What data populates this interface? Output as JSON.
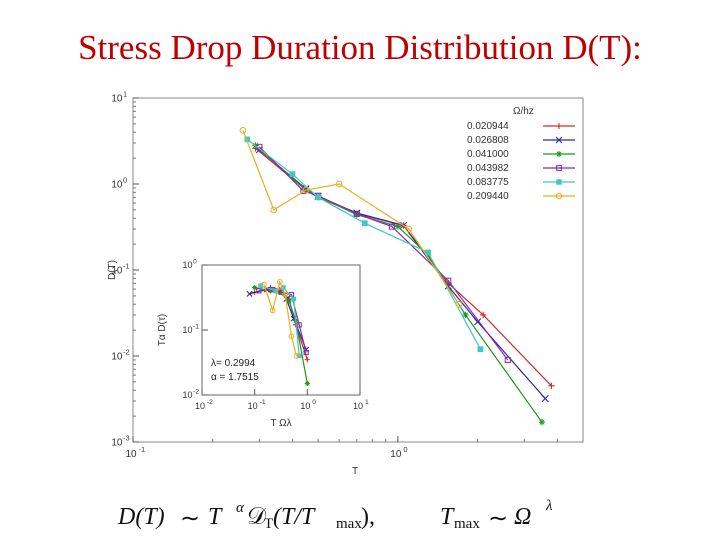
{
  "slide": {
    "title": "Stress Drop Duration Distribution D(T):"
  },
  "chart_data": [
    {
      "type": "line",
      "scale": "log-log",
      "xlabel": "T",
      "ylabel": "D(T)",
      "xlim": [
        0.1,
        5
      ],
      "ylim": [
        0.001,
        10
      ],
      "x_ticks": [
        {
          "value": 0.1,
          "base": "10",
          "exp": "-1"
        },
        {
          "value": 1,
          "base": "10",
          "exp": "0"
        }
      ],
      "y_ticks": [
        {
          "value": 0.001,
          "base": "10",
          "exp": "-3"
        },
        {
          "value": 0.01,
          "base": "10",
          "exp": "-2"
        },
        {
          "value": 0.1,
          "base": "10",
          "exp": "-1"
        },
        {
          "value": 1,
          "base": "10",
          "exp": "0"
        },
        {
          "value": 10,
          "base": "10",
          "exp": "1"
        }
      ],
      "legend_title": "Ω/hz",
      "legend_position": "top-right",
      "series": [
        {
          "name": "0.020944",
          "color": "#d42a2a",
          "marker": "plus",
          "x": [
            0.29,
            0.45,
            0.5,
            0.7,
            1.05,
            1.55,
            2.1,
            3.8
          ],
          "y": [
            2.6,
            0.85,
            0.7,
            0.45,
            0.33,
            0.07,
            0.03,
            0.0045
          ]
        },
        {
          "name": "0.026808",
          "color": "#2a2aaa",
          "marker": "x",
          "x": [
            0.3,
            0.45,
            0.5,
            0.7,
            1.05,
            1.55,
            2.0,
            3.6
          ],
          "y": [
            2.5,
            0.88,
            0.72,
            0.46,
            0.33,
            0.065,
            0.025,
            0.0032
          ]
        },
        {
          "name": "0.041000",
          "color": "#1a9a1a",
          "marker": "star",
          "x": [
            0.29,
            0.45,
            0.5,
            0.7,
            1.0,
            1.3,
            1.8,
            3.5
          ],
          "y": [
            2.8,
            0.85,
            0.72,
            0.44,
            0.32,
            0.15,
            0.03,
            0.0017
          ]
        },
        {
          "name": "0.043982",
          "color": "#8a2aaa",
          "marker": "square-open",
          "x": [
            0.3,
            0.44,
            0.5,
            0.7,
            0.95,
            1.55,
            2.6
          ],
          "y": [
            2.7,
            0.83,
            0.73,
            0.45,
            0.32,
            0.075,
            0.009
          ]
        },
        {
          "name": "0.083775",
          "color": "#40c8c8",
          "marker": "square-filled",
          "x": [
            0.27,
            0.4,
            0.5,
            0.75,
            1.3,
            2.05
          ],
          "y": [
            3.3,
            1.3,
            0.7,
            0.35,
            0.16,
            0.012
          ]
        },
        {
          "name": "0.209440",
          "color": "#e8b020",
          "marker": "circle-open",
          "x": [
            0.26,
            0.34,
            0.45,
            0.6,
            1.1,
            1.7
          ],
          "y": [
            4.2,
            0.5,
            0.85,
            1.0,
            0.3,
            0.04
          ]
        }
      ]
    },
    {
      "type": "line",
      "scale": "log-log",
      "inset": true,
      "xlabel": "T Ωλ",
      "ylabel": "Tα D(τ)",
      "xlim": [
        0.01,
        10
      ],
      "ylim": [
        0.01,
        1
      ],
      "x_ticks": [
        {
          "value": 0.01,
          "base": "10",
          "exp": "-2"
        },
        {
          "value": 0.1,
          "base": "10",
          "exp": "-1"
        },
        {
          "value": 1,
          "base": "10",
          "exp": "0"
        },
        {
          "value": 10,
          "base": "10",
          "exp": "1"
        }
      ],
      "y_ticks": [
        {
          "value": 0.01,
          "base": "10",
          "exp": "-2"
        },
        {
          "value": 0.1,
          "base": "10",
          "exp": "-1"
        },
        {
          "value": 1,
          "base": "10",
          "exp": "0"
        }
      ],
      "annotations": [
        "λ= 0.2994",
        "α = 1.7515"
      ],
      "series": [
        {
          "name": "0.020944",
          "color": "#d42a2a",
          "marker": "plus",
          "x": [
            0.1,
            0.2,
            0.3,
            0.45,
            0.6,
            1.0
          ],
          "y": [
            0.38,
            0.45,
            0.42,
            0.3,
            0.12,
            0.035
          ]
        },
        {
          "name": "0.026808",
          "color": "#2a2aaa",
          "marker": "x",
          "x": [
            0.08,
            0.17,
            0.28,
            0.4,
            0.55,
            0.95
          ],
          "y": [
            0.36,
            0.42,
            0.4,
            0.3,
            0.15,
            0.05
          ]
        },
        {
          "name": "0.041000",
          "color": "#1a9a1a",
          "marker": "star",
          "x": [
            0.1,
            0.2,
            0.3,
            0.45,
            0.6,
            1.0
          ],
          "y": [
            0.45,
            0.4,
            0.38,
            0.28,
            0.14,
            0.015
          ]
        },
        {
          "name": "0.043982",
          "color": "#8a2aaa",
          "marker": "square-open",
          "x": [
            0.12,
            0.22,
            0.32,
            0.5,
            0.7,
            0.95
          ],
          "y": [
            0.4,
            0.42,
            0.38,
            0.35,
            0.12,
            0.045
          ]
        },
        {
          "name": "0.083775",
          "color": "#40c8c8",
          "marker": "square-filled",
          "x": [
            0.13,
            0.25,
            0.35,
            0.55,
            0.7
          ],
          "y": [
            0.48,
            0.4,
            0.45,
            0.3,
            0.04
          ]
        },
        {
          "name": "0.209440",
          "color": "#e8b020",
          "marker": "circle-open",
          "x": [
            0.15,
            0.22,
            0.3,
            0.38,
            0.5,
            0.62
          ],
          "y": [
            0.5,
            0.2,
            0.55,
            0.35,
            0.08,
            0.04
          ]
        }
      ]
    }
  ],
  "formula": {
    "lhs": "D(T)",
    "sim1": "∼",
    "T": "T",
    "alpha": "α",
    "calD": "𝒟",
    "sub_T": "T",
    "arg": "(T/T",
    "max": "max",
    "close": "),",
    "Tmax_T": "T",
    "Tmax_sub": "max",
    "sim2": "∼",
    "Omega": "Ω",
    "lambda": "λ"
  }
}
